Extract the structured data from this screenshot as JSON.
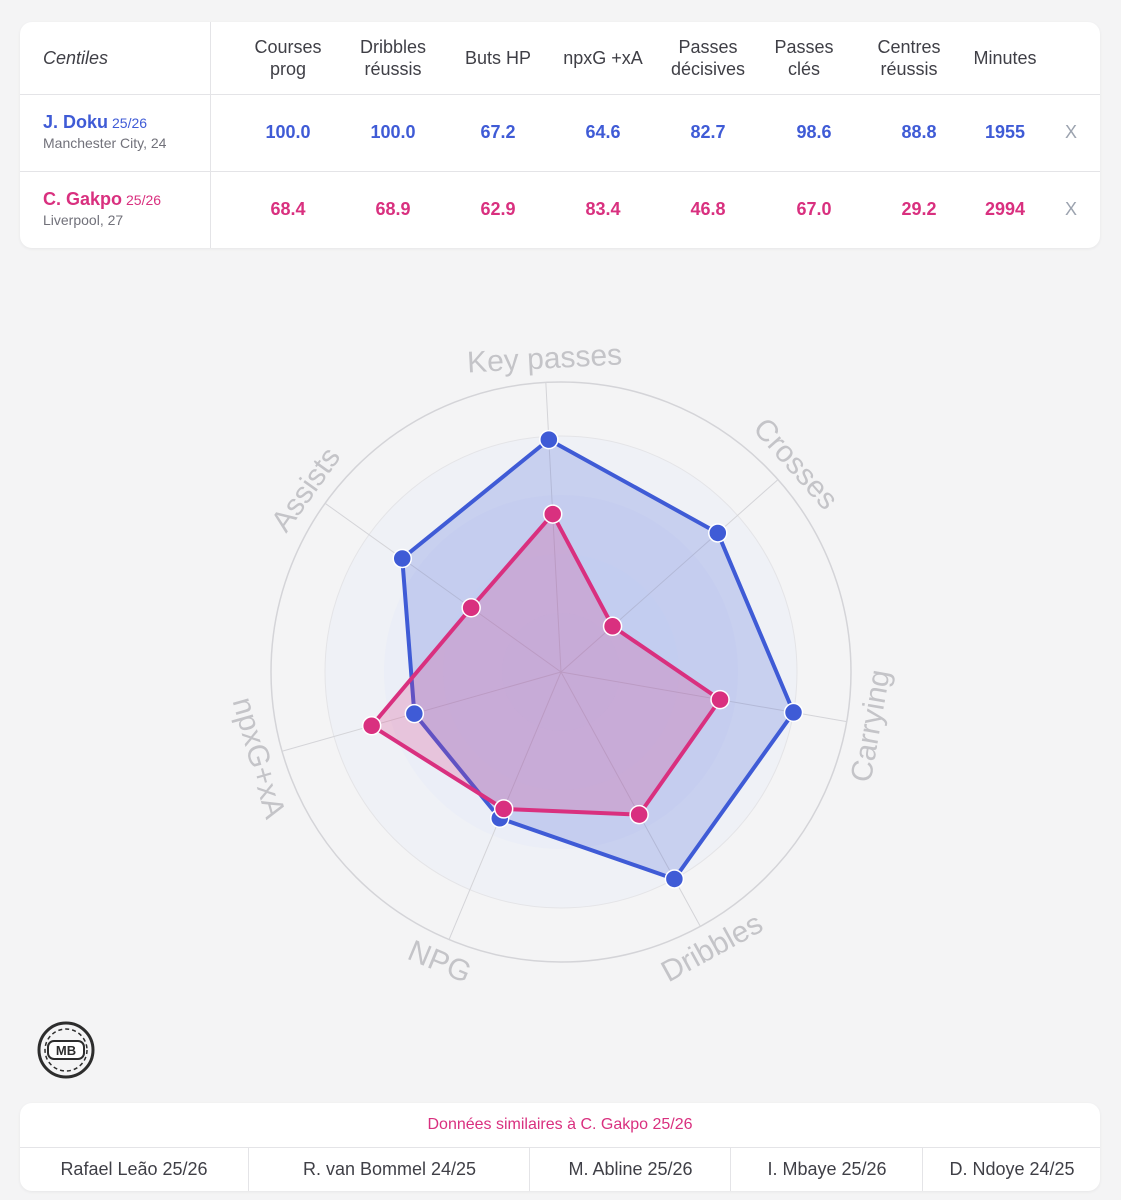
{
  "table": {
    "header_label": "Centiles",
    "columns": [
      "Courses\nprog",
      "Dribbles\nréussis",
      "Buts HP",
      "npxG +xA",
      "Passes\ndécisives",
      "Passes\nclés",
      "Centres\nréussis",
      "Minutes"
    ],
    "players": [
      {
        "name": "J. Doku",
        "season": "25/26",
        "team": "Manchester City, 24",
        "values": [
          "100.0",
          "100.0",
          "67.2",
          "64.6",
          "82.7",
          "98.6",
          "88.8",
          "1955"
        ],
        "remove": "X",
        "color": "#3f5bd6"
      },
      {
        "name": "C. Gakpo",
        "season": "25/26",
        "team": "Liverpool, 27",
        "values": [
          "68.4",
          "68.9",
          "62.9",
          "83.4",
          "46.8",
          "67.0",
          "29.2",
          "2994"
        ],
        "remove": "X",
        "color": "#d9307f"
      }
    ]
  },
  "chart_data": {
    "type": "radar",
    "axes": [
      "Key passes",
      "Crosses",
      "Carrying",
      "Dribbles",
      "NPG",
      "npxG+xA",
      "Assists"
    ],
    "series": [
      {
        "name": "J. Doku",
        "color": "#3f5bd6",
        "values": [
          98.6,
          88.8,
          100.0,
          100.0,
          67.2,
          64.6,
          82.7
        ]
      },
      {
        "name": "C. Gakpo",
        "color": "#d9307f",
        "values": [
          67.0,
          29.2,
          68.4,
          68.9,
          62.9,
          83.4,
          46.8
        ]
      }
    ],
    "range": [
      0,
      100
    ],
    "rings": 4,
    "grid": true
  },
  "logo": {
    "text": "MB"
  },
  "similar": {
    "title": "Données similaires à C. Gakpo 25/26",
    "items": [
      "Rafael Leão 25/26",
      "R. van Bommel 24/25",
      "M. Abline 25/26",
      "I. Mbaye 25/26",
      "D. Ndoye 24/25"
    ]
  }
}
